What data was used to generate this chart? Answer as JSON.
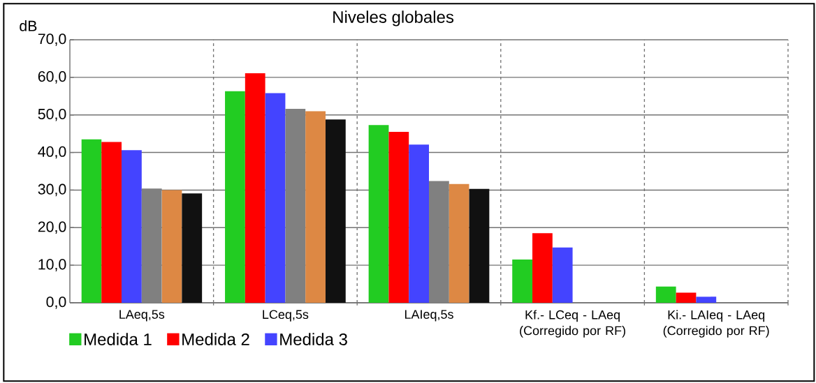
{
  "chart_data": {
    "type": "bar",
    "title": "Niveles globales",
    "ylabel": "dB",
    "categories": [
      "LAeq,5s",
      "LCeq,5s",
      "LAIeq,5s",
      "Kf.- LCeq - LAeq (Corregido por RF)",
      "Ki.- LAIeq - LAeq (Corregido por RF)"
    ],
    "series": [
      {
        "name": "Medida 1",
        "color": "#22cc22",
        "values": [
          43.5,
          56.3,
          47.3,
          11.5,
          4.3
        ]
      },
      {
        "name": "Medida 2",
        "color": "#ff0000",
        "values": [
          42.8,
          61.1,
          45.5,
          18.5,
          2.7
        ]
      },
      {
        "name": "Medida 3",
        "color": "#4444ff",
        "values": [
          40.6,
          55.8,
          42.1,
          14.7,
          1.6
        ]
      },
      {
        "color": "#808080",
        "values": [
          30.4,
          51.6,
          32.4,
          null,
          null
        ]
      },
      {
        "color": "#dd8844",
        "values": [
          30.0,
          51.0,
          31.6,
          null,
          null
        ]
      },
      {
        "color": "#111111",
        "values": [
          29.1,
          48.8,
          30.3,
          null,
          null
        ]
      }
    ],
    "ylim": [
      0,
      70
    ],
    "yticks": [
      {
        "value": 0,
        "label": "0,0"
      },
      {
        "value": 10,
        "label": "10,0"
      },
      {
        "value": 20,
        "label": "20,0"
      },
      {
        "value": 30,
        "label": "30,0"
      },
      {
        "value": 40,
        "label": "40,0"
      },
      {
        "value": 50,
        "label": "50,0"
      },
      {
        "value": 60,
        "label": "60,0"
      },
      {
        "value": 70,
        "label": "70,0"
      }
    ],
    "grid": true,
    "legend": "bottom"
  }
}
